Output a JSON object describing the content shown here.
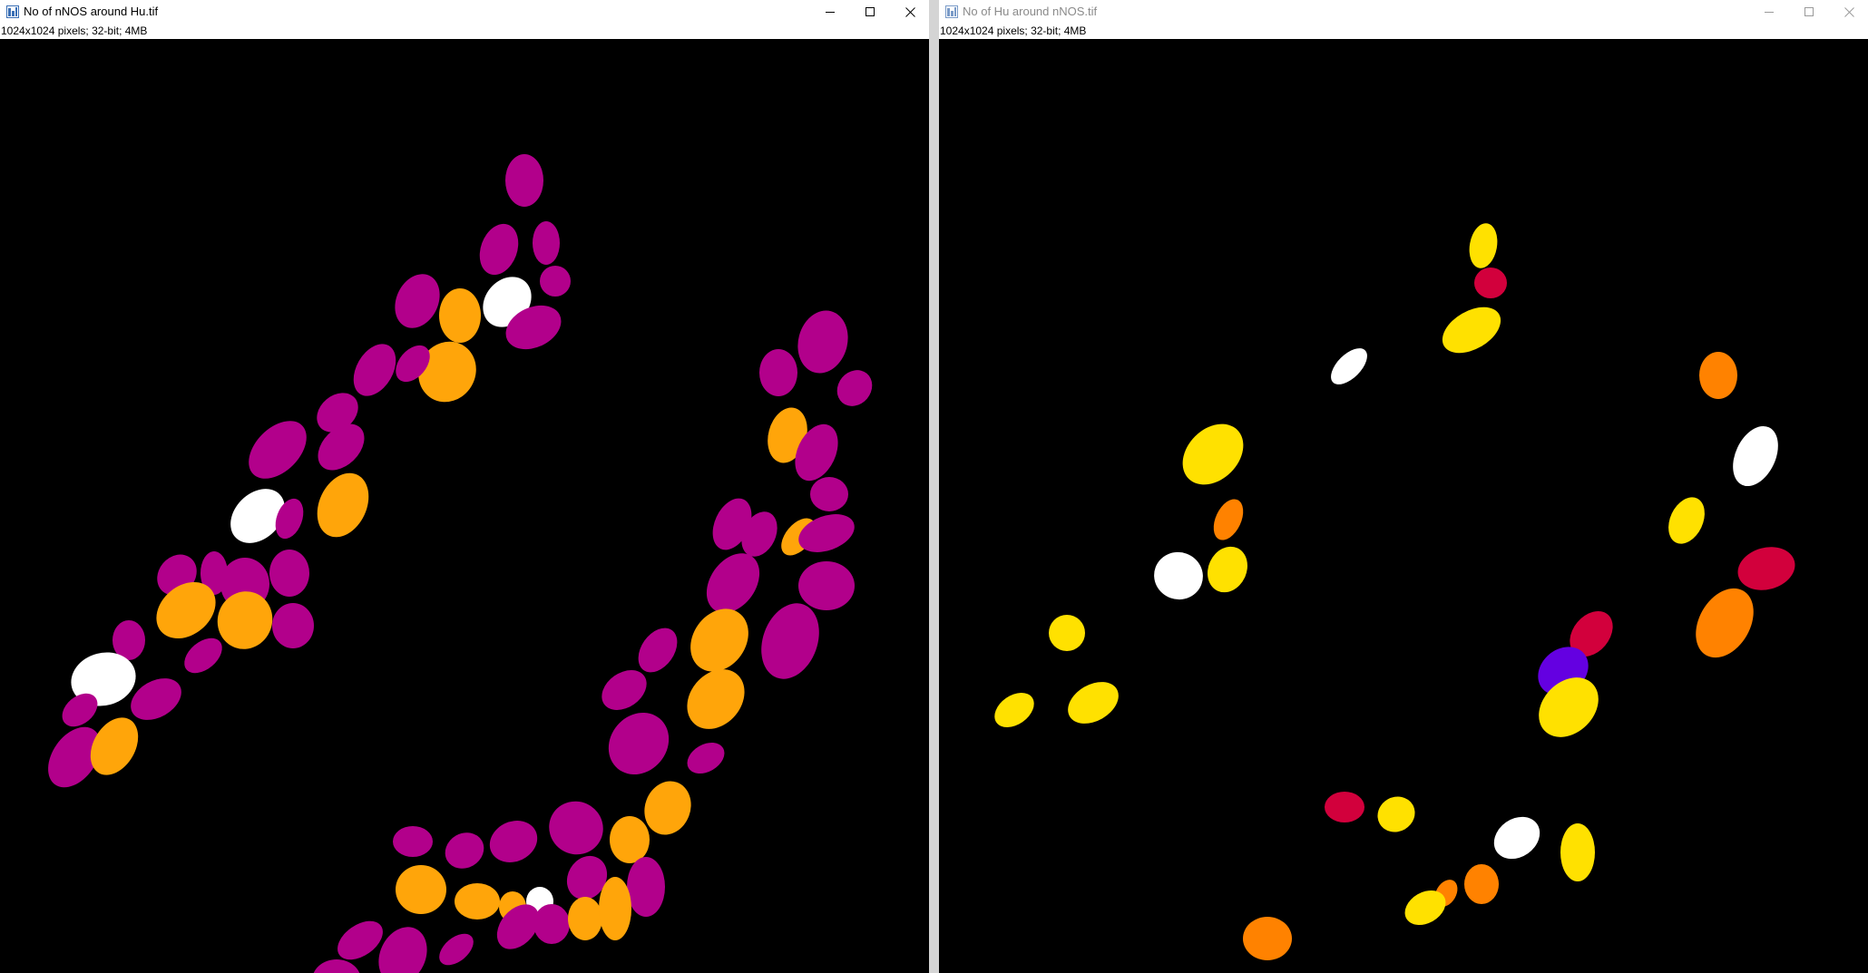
{
  "windows": [
    {
      "title": "No of nNOS around Hu.tif",
      "info": "1024x1024 pixels; 32-bit; 4MB",
      "active": true,
      "icons": {
        "app": "imagej-image-icon",
        "minimize": "minimize-icon",
        "maximize": "maximize-icon",
        "close": "close-icon"
      }
    },
    {
      "title": "No of Hu around nNOS.tif",
      "info": "1024x1024 pixels; 32-bit; 4MB",
      "active": false,
      "icons": {
        "app": "imagej-image-icon",
        "minimize": "minimize-icon",
        "maximize": "maximize-icon",
        "close": "close-icon"
      }
    }
  ],
  "palette": {
    "magenta": "#b2008b",
    "orange": "#ffa50a",
    "white": "#ffffff",
    "yellow": "#ffe100",
    "dark_orange": "#ff8200",
    "crimson": "#d2003c",
    "violet": "#6400e1",
    "background": "#000000"
  }
}
